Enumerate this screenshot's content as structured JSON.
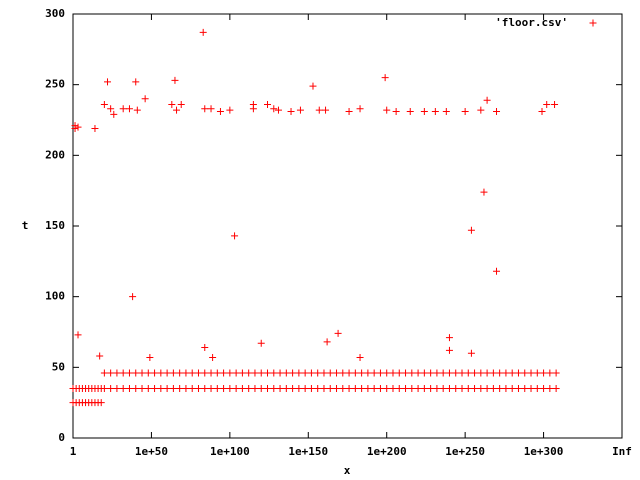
{
  "chart_data": {
    "type": "scatter",
    "xlabel": "x",
    "ylabel": "t",
    "xlim": [
      0,
      350
    ],
    "xticks": [
      {
        "value": 0,
        "label": "1"
      },
      {
        "value": 50,
        "label": "1e+50"
      },
      {
        "value": 100,
        "label": "1e+100"
      },
      {
        "value": 150,
        "label": "1e+150"
      },
      {
        "value": 200,
        "label": "1e+200"
      },
      {
        "value": 250,
        "label": "1e+250"
      },
      {
        "value": 300,
        "label": "1e+300"
      },
      {
        "value": 350,
        "label": "Inf"
      }
    ],
    "ylim": [
      0,
      300
    ],
    "yticks": [
      0,
      50,
      100,
      150,
      200,
      250,
      300
    ],
    "legend": "top-right",
    "series": [
      {
        "name": "'floor.csv'",
        "color": "#ff0000",
        "x": [
          0,
          2,
          4,
          6,
          8,
          10,
          12,
          14,
          16,
          18,
          0,
          2,
          4,
          6,
          8,
          10,
          12,
          14,
          16,
          18,
          20,
          24,
          28,
          32,
          36,
          40,
          44,
          48,
          52,
          56,
          60,
          64,
          68,
          72,
          76,
          80,
          84,
          88,
          92,
          96,
          100,
          104,
          108,
          112,
          116,
          120,
          124,
          128,
          132,
          136,
          140,
          144,
          148,
          152,
          156,
          160,
          164,
          168,
          172,
          176,
          180,
          184,
          188,
          192,
          196,
          200,
          204,
          208,
          212,
          216,
          220,
          224,
          228,
          232,
          236,
          240,
          244,
          248,
          252,
          256,
          260,
          264,
          268,
          272,
          276,
          280,
          284,
          288,
          292,
          296,
          300,
          304,
          308,
          20,
          24,
          28,
          32,
          36,
          40,
          44,
          48,
          52,
          56,
          60,
          64,
          68,
          72,
          76,
          80,
          84,
          88,
          92,
          96,
          100,
          104,
          108,
          112,
          116,
          120,
          124,
          128,
          132,
          136,
          140,
          144,
          148,
          152,
          156,
          160,
          164,
          168,
          172,
          176,
          180,
          184,
          188,
          192,
          196,
          200,
          204,
          208,
          212,
          216,
          220,
          224,
          228,
          232,
          236,
          240,
          244,
          248,
          252,
          256,
          260,
          264,
          268,
          272,
          276,
          280,
          284,
          288,
          292,
          296,
          300,
          304,
          308,
          1.3,
          1.3,
          3.2,
          3.2,
          14,
          20,
          22,
          24,
          26,
          32,
          36,
          38,
          40,
          41,
          46,
          63,
          65,
          66,
          69,
          83,
          84,
          88,
          94,
          100,
          103,
          115,
          115,
          124,
          128,
          131,
          139,
          145,
          153,
          157,
          161,
          176,
          183,
          199,
          200,
          206,
          215,
          224,
          231,
          238,
          250,
          254,
          260,
          262,
          264,
          270,
          270,
          299,
          302,
          307,
          17,
          49,
          84,
          89,
          120,
          162,
          169,
          240,
          240,
          254,
          183
        ],
        "values": [
          25,
          25,
          25,
          25,
          25,
          25,
          25,
          25,
          25,
          25,
          35,
          35,
          35,
          35,
          35,
          35,
          35,
          35,
          35,
          35,
          46,
          46,
          46,
          46,
          46,
          46,
          46,
          46,
          46,
          46,
          46,
          46,
          46,
          46,
          46,
          46,
          46,
          46,
          46,
          46,
          46,
          46,
          46,
          46,
          46,
          46,
          46,
          46,
          46,
          46,
          46,
          46,
          46,
          46,
          46,
          46,
          46,
          46,
          46,
          46,
          46,
          46,
          46,
          46,
          46,
          46,
          46,
          46,
          46,
          46,
          46,
          46,
          46,
          46,
          46,
          46,
          46,
          46,
          46,
          46,
          46,
          46,
          46,
          46,
          46,
          46,
          46,
          46,
          46,
          46,
          46,
          46,
          46,
          35,
          35,
          35,
          35,
          35,
          35,
          35,
          35,
          35,
          35,
          35,
          35,
          35,
          35,
          35,
          35,
          35,
          35,
          35,
          35,
          35,
          35,
          35,
          35,
          35,
          35,
          35,
          35,
          35,
          35,
          35,
          35,
          35,
          35,
          35,
          35,
          35,
          35,
          35,
          35,
          35,
          35,
          35,
          35,
          35,
          35,
          35,
          35,
          35,
          35,
          35,
          35,
          35,
          35,
          35,
          35,
          35,
          35,
          35,
          35,
          35,
          35,
          35,
          35,
          35,
          35,
          35,
          35,
          35,
          35,
          35,
          35,
          35,
          219,
          221,
          220,
          73,
          219,
          236,
          252,
          233,
          229,
          233,
          233,
          100,
          252,
          232,
          240,
          236,
          253,
          232,
          236,
          287,
          233,
          233,
          231,
          232,
          143,
          233,
          236,
          236,
          233,
          232,
          231,
          232,
          249,
          232,
          232,
          231,
          233,
          255,
          232,
          231,
          231,
          231,
          231,
          231,
          231,
          147,
          232,
          174,
          239,
          231,
          118,
          231,
          236,
          236,
          58,
          57,
          64,
          57,
          67,
          68,
          74,
          71,
          62,
          60,
          57
        ]
      }
    ]
  }
}
